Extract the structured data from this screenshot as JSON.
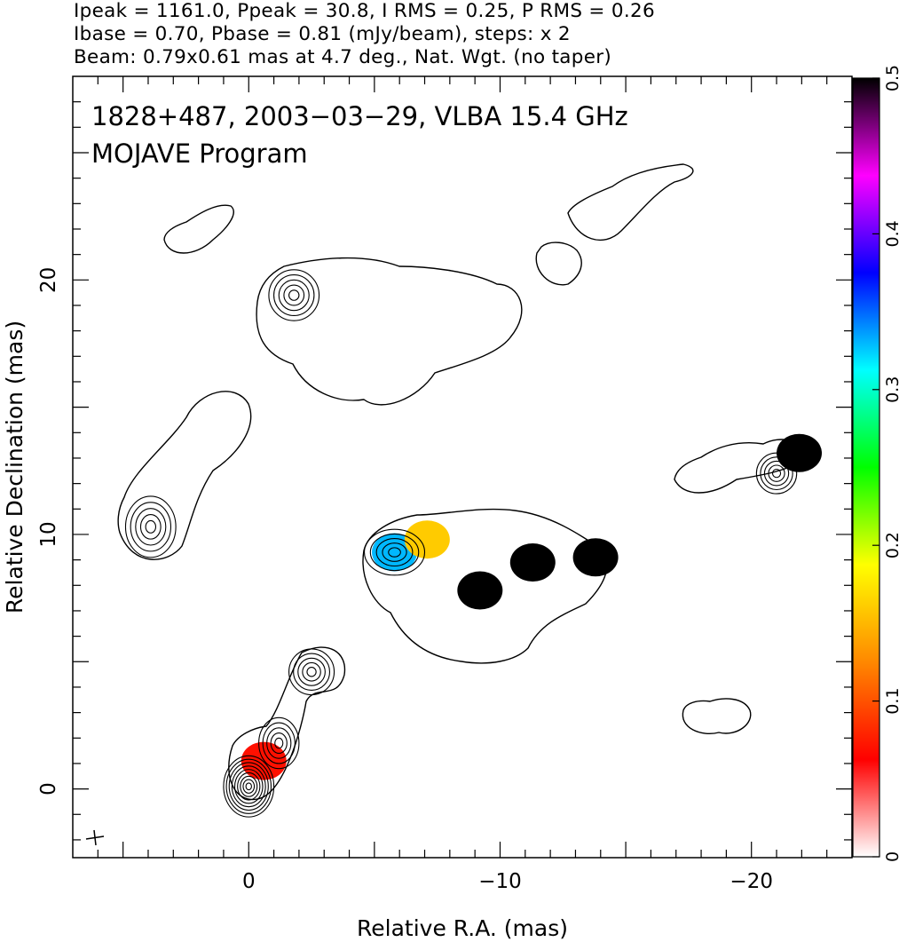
{
  "header": {
    "line1": "Ipeak = 1161.0, Ppeak = 30.8, I RMS = 0.25, P RMS = 0.26",
    "line2": "Ibase = 0.70, Pbase = 0.81 (mJy/beam), steps: x 2",
    "line3": "Beam: 0.79x0.61 mas at 4.7 deg., Nat. Wgt. (no taper)"
  },
  "chart_data": {
    "type": "heatmap",
    "title": "1828+487, 2003−03−29, VLBA 15.4 GHz",
    "subtitle": "MOJAVE Program",
    "xlabel": "Relative R.A. (mas)",
    "ylabel": "Relative Declination (mas)",
    "xlim": [
      7,
      -24
    ],
    "ylim": [
      -2.7,
      28
    ],
    "xticks": [
      0,
      -10,
      -20
    ],
    "xtick_labels": [
      "0",
      "−10",
      "−20"
    ],
    "yticks": [
      0,
      10,
      20
    ],
    "ytick_labels": [
      "0",
      "10",
      "20"
    ],
    "colorbar": {
      "range": [
        0,
        0.5
      ],
      "ticks": [
        0,
        0.1,
        0.2,
        0.3,
        0.4,
        0.5
      ],
      "tick_labels": [
        "0",
        "0.1",
        "0.2",
        "0.3",
        "0.4",
        "0.5"
      ],
      "colors": [
        "#ffffff",
        "#ff0000",
        "#ff8800",
        "#ffff00",
        "#00ff00",
        "#00ffff",
        "#0000ff",
        "#ff00ff",
        "#000000"
      ]
    },
    "contours": [
      {
        "name": "core",
        "cx": 0.0,
        "cy": 0.1,
        "rx": 1.0,
        "ry": 1.2
      },
      {
        "name": "knot-near",
        "cx": -1.2,
        "cy": 1.8,
        "rx": 0.8,
        "ry": 1.0
      },
      {
        "name": "knot-mid",
        "cx": -2.5,
        "cy": 4.6,
        "rx": 0.9,
        "ry": 0.9
      },
      {
        "name": "east-lobe",
        "cx": 3.9,
        "cy": 10.3,
        "rx": 1.0,
        "ry": 1.2
      },
      {
        "name": "central-cloud",
        "cx": -5.8,
        "cy": 9.3,
        "rx": 1.2,
        "ry": 0.9
      },
      {
        "name": "north-lobe",
        "cx": -1.8,
        "cy": 19.4,
        "rx": 1.0,
        "ry": 1.0
      },
      {
        "name": "west-knot",
        "cx": -21.0,
        "cy": 12.4,
        "rx": 0.8,
        "ry": 0.8
      }
    ],
    "polarization_blobs": [
      {
        "name": "core-pol",
        "cx": -0.6,
        "cy": 1.1,
        "value": 0.07
      },
      {
        "name": "cloud-pol-a",
        "cx": -5.8,
        "cy": 9.3,
        "value": 0.33
      },
      {
        "name": "cloud-pol-b",
        "cx": -7.1,
        "cy": 9.8,
        "value": 0.16
      },
      {
        "name": "cloud-pol-c",
        "cx": -9.2,
        "cy": 7.8,
        "value": 0.5
      },
      {
        "name": "cloud-pol-d",
        "cx": -11.3,
        "cy": 8.9,
        "value": 0.5
      },
      {
        "name": "cloud-pol-e",
        "cx": -13.8,
        "cy": 9.1,
        "value": 0.5
      },
      {
        "name": "west-pol",
        "cx": -21.9,
        "cy": 13.2,
        "value": 0.5
      }
    ]
  }
}
